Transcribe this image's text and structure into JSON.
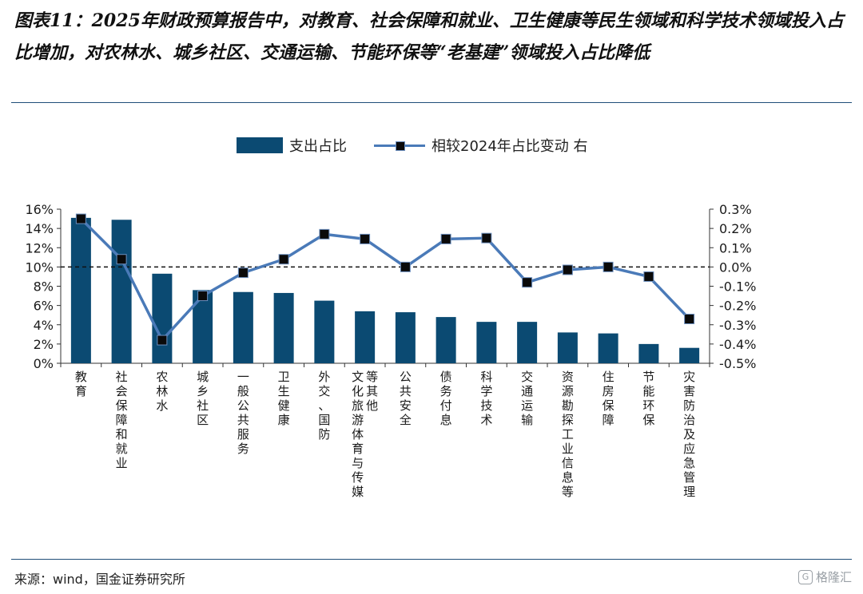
{
  "title": "图表11：2025年财政预算报告中，对教育、社会保障和就业、卫生健康等民生领域和科学技术领域投入占比增加，对农林水、城乡社区、交通运输、节能环保等“老基建”领域投入占比降低",
  "legend": {
    "bar_label": "支出占比",
    "line_label": "相较2024年占比变动 右"
  },
  "source": "来源：wind，国金证券研究所",
  "watermark": "格隆汇",
  "colors": {
    "bar": "#0b4a72",
    "line": "#4a7ab8",
    "marker": "#0a0a0a"
  },
  "chart_data": {
    "type": "bar",
    "categories": [
      "教育",
      "社会保障和就业",
      "农林水",
      "城乡社区",
      "一般公共服务",
      "卫生健康",
      "外交、国防",
      "文化旅游体育与传媒等其他",
      "公共安全",
      "债务付息",
      "科学技术",
      "交通运输",
      "资源勘探工业信息等",
      "住房保障",
      "节能环保",
      "灾害防治及应急管理"
    ],
    "series": [
      {
        "name": "支出占比",
        "type": "bar",
        "axis": "left",
        "values": [
          15.1,
          14.9,
          9.3,
          7.6,
          7.4,
          7.3,
          6.5,
          5.4,
          5.3,
          4.8,
          4.3,
          4.3,
          3.2,
          3.1,
          2.0,
          1.6
        ]
      },
      {
        "name": "相较2024年占比变动 右",
        "type": "line",
        "axis": "right",
        "values": [
          0.25,
          0.04,
          -0.38,
          -0.15,
          -0.03,
          0.04,
          0.17,
          0.145,
          0.0,
          0.145,
          0.15,
          -0.08,
          -0.015,
          0.0,
          -0.05,
          -0.27
        ]
      }
    ],
    "y_left": {
      "min": 0,
      "max": 16,
      "step": 2,
      "format": "percent0",
      "ticks": [
        "0%",
        "2%",
        "4%",
        "6%",
        "8%",
        "10%",
        "12%",
        "14%",
        "16%"
      ]
    },
    "y_right": {
      "min": -0.5,
      "max": 0.3,
      "step": 0.1,
      "format": "percent1",
      "ticks": [
        "-0.5%",
        "-0.4%",
        "-0.3%",
        "-0.2%",
        "-0.1%",
        "0.0%",
        "0.1%",
        "0.2%",
        "0.3%"
      ]
    },
    "reference_line": {
      "axis": "right",
      "value": 0.0,
      "style": "dashed"
    },
    "legend_position": "top-center",
    "grid": false
  }
}
